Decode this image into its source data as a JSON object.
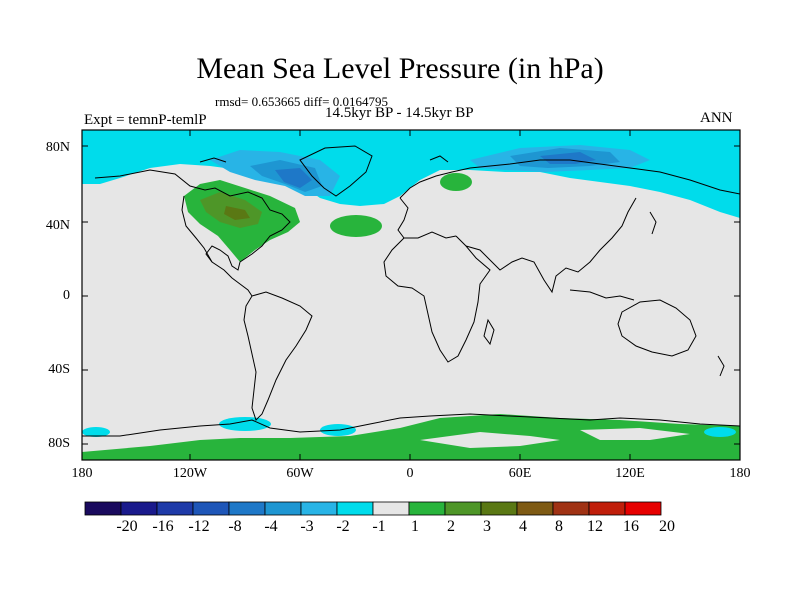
{
  "title": "Mean Sea Level Pressure (in hPa)",
  "stats": "rmsd= 0.653665 diff= 0.0164795",
  "experiment": "Expt = temnP-temlP",
  "period": "14.5kyr BP - 14.5kyr BP",
  "season": "ANN",
  "lat_labels": [
    "80N",
    "40N",
    "0",
    "40S",
    "80S"
  ],
  "lon_labels": [
    "180",
    "120W",
    "60W",
    "0",
    "60E",
    "120E",
    "180"
  ],
  "colorbar": {
    "labels": [
      "-20",
      "-16",
      "-12",
      "-8",
      "-4",
      "-3",
      "-2",
      "-1",
      "1",
      "2",
      "3",
      "4",
      "8",
      "12",
      "16",
      "20"
    ],
    "colors": [
      "#1a0a5e",
      "#1a1a8c",
      "#1e3aa8",
      "#1e56b8",
      "#1e78c8",
      "#1e96d2",
      "#28b4e6",
      "#00dceb",
      "#e6e6e6",
      "#28b43c",
      "#4e9628",
      "#5a7814",
      "#7e5a14",
      "#a03214",
      "#c01e0a",
      "#e60000"
    ]
  },
  "palette": {
    "background": "#e6e6e6",
    "cyan": "#00dceb",
    "light_blue": "#28b4e6",
    "blue": "#1e78c8",
    "dark_blue": "#1e56b8",
    "green": "#28b43c",
    "olive": "#4e9628",
    "brown_green": "#5a7814"
  }
}
